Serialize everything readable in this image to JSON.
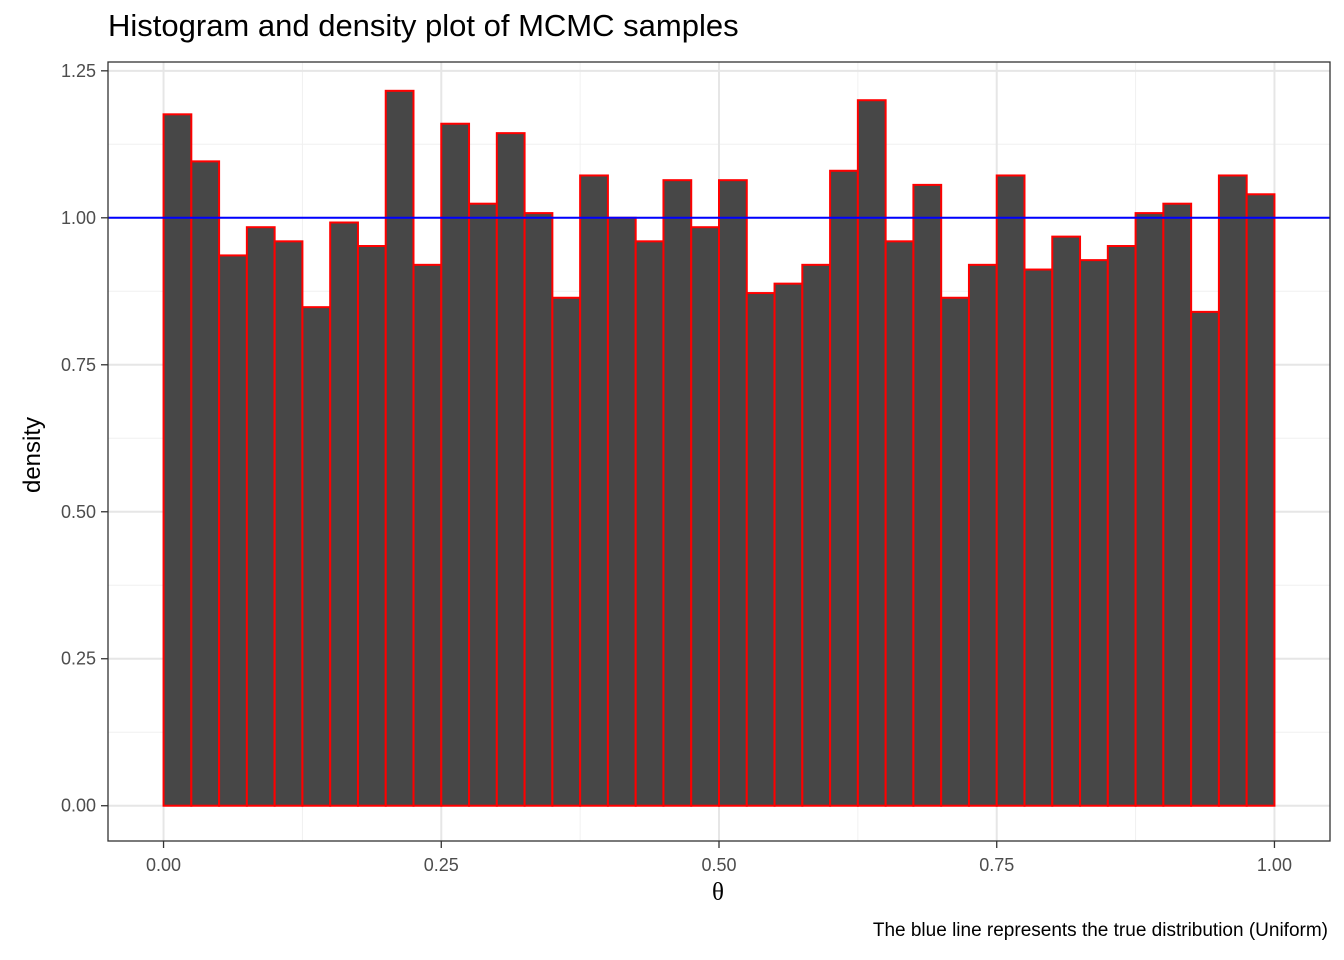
{
  "chart_data": {
    "type": "bar",
    "title": "Histogram and density plot of MCMC samples",
    "xlabel": "θ",
    "ylabel": "density",
    "caption": "The blue line represents the true distribution (Uniform)",
    "xlim": [
      -0.05,
      1.05
    ],
    "ylim": [
      -0.06,
      1.265
    ],
    "x_ticks": [
      0.0,
      0.25,
      0.5,
      0.75,
      1.0
    ],
    "x_tick_labels": [
      "0.00",
      "0.25",
      "0.50",
      "0.75",
      "1.00"
    ],
    "y_ticks": [
      0.0,
      0.25,
      0.5,
      0.75,
      1.0,
      1.25
    ],
    "y_tick_labels": [
      "0.00",
      "0.25",
      "0.50",
      "0.75",
      "1.00",
      "1.25"
    ],
    "bins": 40,
    "bin_range": [
      0.0,
      1.0
    ],
    "values": [
      1.176,
      1.096,
      0.936,
      0.984,
      0.96,
      0.848,
      0.992,
      0.952,
      1.216,
      0.92,
      1.16,
      1.024,
      1.144,
      1.008,
      0.864,
      1.072,
      1.0,
      0.96,
      1.064,
      0.984,
      1.064,
      0.872,
      0.888,
      0.92,
      1.08,
      1.2,
      0.96,
      1.056,
      0.864,
      0.92,
      1.072,
      0.912,
      0.968,
      0.928,
      0.952,
      1.008,
      1.024,
      0.84,
      1.072,
      1.04
    ],
    "reference_line": {
      "y": 1.0,
      "color": "#0000ff"
    },
    "bar_fill": "#474747",
    "bar_outline": "#ff0000",
    "grid": true
  }
}
